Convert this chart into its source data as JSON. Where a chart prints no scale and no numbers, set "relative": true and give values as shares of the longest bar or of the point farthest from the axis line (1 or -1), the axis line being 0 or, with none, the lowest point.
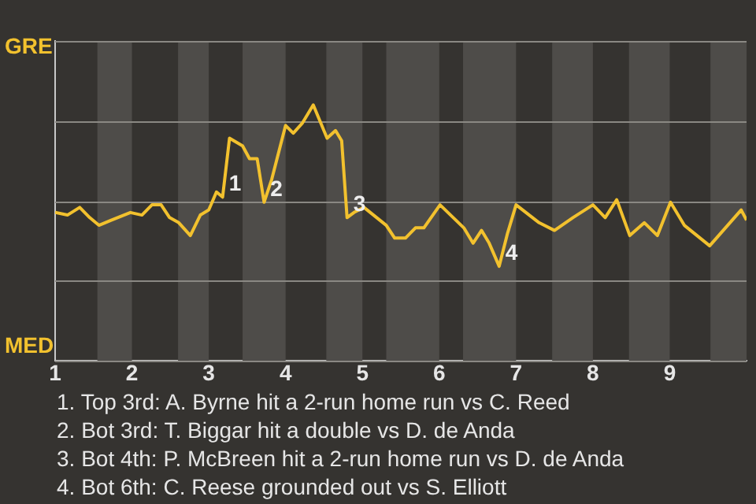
{
  "chart_data": {
    "type": "line",
    "relative": true,
    "x": [
      1.0,
      1.16,
      1.32,
      1.45,
      1.57,
      1.73,
      1.98,
      2.13,
      2.26,
      2.38,
      2.49,
      2.61,
      2.76,
      2.89,
      3.0,
      3.1,
      3.18,
      3.27,
      3.44,
      3.53,
      3.63,
      3.72,
      3.82,
      4.0,
      4.1,
      4.22,
      4.36,
      4.54,
      4.65,
      4.73,
      4.8,
      4.89,
      5.02,
      5.31,
      5.42,
      5.56,
      5.69,
      5.8,
      6.01,
      6.32,
      6.44,
      6.55,
      6.65,
      6.78,
      6.89,
      7.0,
      7.3,
      7.5,
      7.74,
      8.0,
      8.16,
      8.31,
      8.48,
      8.67,
      8.84,
      9.01,
      9.19,
      9.52,
      9.93,
      10.0
    ],
    "series": [
      {
        "color": "#f2c12e",
        "values": [
          0.58,
          0.57,
          0.6,
          0.56,
          0.53,
          0.55,
          0.58,
          0.57,
          0.61,
          0.61,
          0.56,
          0.54,
          0.49,
          0.57,
          0.59,
          0.66,
          0.64,
          0.87,
          0.84,
          0.79,
          0.79,
          0.62,
          0.71,
          0.92,
          0.89,
          0.93,
          1,
          0.87,
          0.9,
          0.86,
          0.56,
          0.58,
          0.6,
          0.53,
          0.48,
          0.48,
          0.52,
          0.52,
          0.61,
          0.52,
          0.46,
          0.51,
          0.46,
          0.37,
          0.5,
          0.61,
          0.54,
          0.51,
          0.56,
          0.61,
          0.56,
          0.63,
          0.49,
          0.54,
          0.49,
          0.62,
          0.53,
          0.45,
          0.59,
          0.55
        ]
      }
    ],
    "xlim": [
      1,
      10
    ],
    "xticks": [
      1,
      2,
      3,
      4,
      5,
      6,
      7,
      8,
      9
    ],
    "bands": [
      {
        "axis": "x",
        "from": 1.55,
        "to": 2,
        "color": "#4e4c49"
      },
      {
        "axis": "x",
        "from": 2.6,
        "to": 3,
        "color": "#4e4c49"
      },
      {
        "axis": "x",
        "from": 3.44,
        "to": 4,
        "color": "#4e4c49"
      },
      {
        "axis": "x",
        "from": 4.53,
        "to": 5,
        "color": "#4e4c49"
      },
      {
        "axis": "x",
        "from": 5.31,
        "to": 6,
        "color": "#4e4c49"
      },
      {
        "axis": "x",
        "from": 6.31,
        "to": 7,
        "color": "#4e4c49"
      },
      {
        "axis": "x",
        "from": 7.47,
        "to": 8,
        "color": "#4e4c49"
      },
      {
        "axis": "x",
        "from": 8.47,
        "to": 9,
        "color": "#4e4c49"
      },
      {
        "axis": "x",
        "from": 9.53,
        "to": 10,
        "color": "#4e4c49"
      }
    ],
    "annotations": [
      "GRE",
      "MED",
      {
        "text": "1",
        "x": 3.18,
        "y": 0.64
      },
      {
        "text": "2",
        "x": 3.72,
        "y": 0.62
      },
      {
        "text": "3",
        "x": 4.8,
        "y": 0.56
      },
      {
        "text": "4",
        "x": 6.78,
        "y": 0.37
      },
      "1. Top 3rd: A. Byrne hit a 2-run home run vs C. Reed",
      "2. Bot 3rd: T. Biggar hit a double vs D. de Anda",
      "3. Bot 4th: P. McBreen hit a 2-run home run vs D. de Anda",
      "4. Bot 6th: C. Reese grounded out vs S. Elliott"
    ],
    "grid": "y",
    "legend": false,
    "marker": "none",
    "line_style": "solid"
  }
}
